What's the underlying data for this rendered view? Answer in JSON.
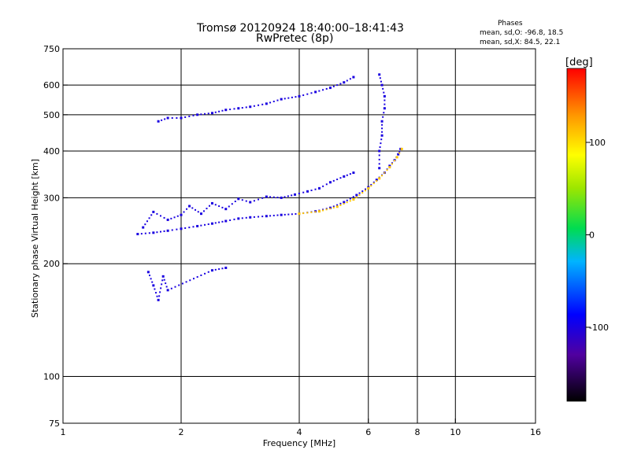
{
  "header": {
    "title": "Tromsø 20120924 18:40:00–18:41:43",
    "subtitle": "RwPretec (8p)",
    "stats_title": "Phases",
    "stats_o": "mean, sd,O: -96.8, 18.5",
    "stats_x": "mean, sd,X:  84.5, 22.1"
  },
  "colorbar": {
    "label": "[deg]",
    "range": [
      -180,
      180
    ],
    "ticks": [
      100,
      0,
      -100
    ],
    "tick_labels": [
      "100",
      "0",
      "-100"
    ]
  },
  "chart_data": {
    "type": "scatter",
    "title": "Tromsø 20120924 18:40:00–18:41:43",
    "subtitle": "RwPretec (8p)",
    "xlabel": "Frequency [MHz]",
    "ylabel": "Stationary phase Virtual Height [km]",
    "x_scale": "log",
    "y_scale": "log",
    "xlim": [
      1,
      16
    ],
    "ylim": [
      75,
      750
    ],
    "x_ticks": [
      1,
      2,
      4,
      6,
      8,
      10,
      16
    ],
    "x_tick_labels": [
      "1",
      "2",
      "4",
      "6",
      "8",
      "10",
      "16"
    ],
    "y_ticks": [
      75,
      100,
      200,
      300,
      400,
      500,
      600,
      750
    ],
    "y_tick_labels": [
      "75",
      "100",
      "200",
      "300",
      "400",
      "500",
      "600",
      "750"
    ],
    "x_grid": [
      2,
      4,
      6,
      8,
      10
    ],
    "y_grid": [
      100,
      200,
      300,
      400,
      500,
      600
    ],
    "color_by": "phase [deg]",
    "series": [
      {
        "points": [
          [
            1.55,
            240
          ],
          [
            1.7,
            242
          ],
          [
            1.85,
            245
          ],
          [
            2.0,
            248
          ],
          [
            2.2,
            252
          ],
          [
            2.4,
            256
          ],
          [
            2.6,
            260
          ],
          [
            2.8,
            264
          ],
          [
            3.0,
            266
          ],
          [
            3.3,
            268
          ],
          [
            3.6,
            270
          ],
          [
            4.0,
            272
          ],
          [
            4.4,
            276
          ],
          [
            4.8,
            282
          ],
          [
            5.2,
            292
          ],
          [
            5.6,
            305
          ],
          [
            6.0,
            320
          ],
          [
            6.3,
            335
          ],
          [
            6.6,
            350
          ],
          [
            6.8,
            365
          ],
          [
            7.0,
            378
          ],
          [
            7.15,
            392
          ],
          [
            7.25,
            405
          ]
        ],
        "phase": -100
      },
      {
        "points": [
          [
            4.0,
            272
          ],
          [
            4.5,
            276
          ],
          [
            5.0,
            284
          ],
          [
            5.5,
            297
          ],
          [
            6.0,
            318
          ],
          [
            6.4,
            338
          ],
          [
            6.8,
            362
          ],
          [
            7.1,
            385
          ],
          [
            7.3,
            405
          ]
        ],
        "phase": 110
      },
      {
        "points": [
          [
            1.6,
            250
          ],
          [
            1.7,
            275
          ],
          [
            1.85,
            262
          ],
          [
            2.0,
            270
          ],
          [
            2.1,
            285
          ],
          [
            2.25,
            272
          ],
          [
            2.4,
            290
          ],
          [
            2.6,
            280
          ],
          [
            2.8,
            298
          ],
          [
            3.0,
            292
          ],
          [
            3.3,
            302
          ],
          [
            3.6,
            300
          ],
          [
            3.9,
            306
          ],
          [
            4.2,
            312
          ],
          [
            4.5,
            318
          ],
          [
            4.8,
            330
          ],
          [
            5.2,
            342
          ],
          [
            5.5,
            350
          ]
        ],
        "phase": -100
      },
      {
        "points": [
          [
            1.75,
            480
          ],
          [
            1.85,
            490
          ],
          [
            2.0,
            490
          ],
          [
            2.2,
            500
          ],
          [
            2.4,
            505
          ],
          [
            2.6,
            515
          ],
          [
            2.8,
            520
          ],
          [
            3.0,
            525
          ],
          [
            3.3,
            535
          ],
          [
            3.6,
            550
          ],
          [
            4.0,
            560
          ],
          [
            4.4,
            575
          ],
          [
            4.8,
            590
          ],
          [
            5.2,
            610
          ],
          [
            5.5,
            630
          ]
        ],
        "phase": -100
      },
      {
        "points": [
          [
            6.4,
            640
          ],
          [
            6.5,
            600
          ],
          [
            6.6,
            560
          ],
          [
            6.6,
            520
          ],
          [
            6.5,
            480
          ],
          [
            6.5,
            440
          ],
          [
            6.4,
            400
          ],
          [
            6.4,
            360
          ]
        ],
        "phase": -100
      },
      {
        "points": [
          [
            1.65,
            190
          ],
          [
            1.7,
            175
          ],
          [
            1.75,
            160
          ],
          [
            1.8,
            185
          ],
          [
            1.85,
            170
          ],
          [
            2.4,
            192
          ],
          [
            2.6,
            195
          ]
        ],
        "phase": -100
      }
    ]
  }
}
